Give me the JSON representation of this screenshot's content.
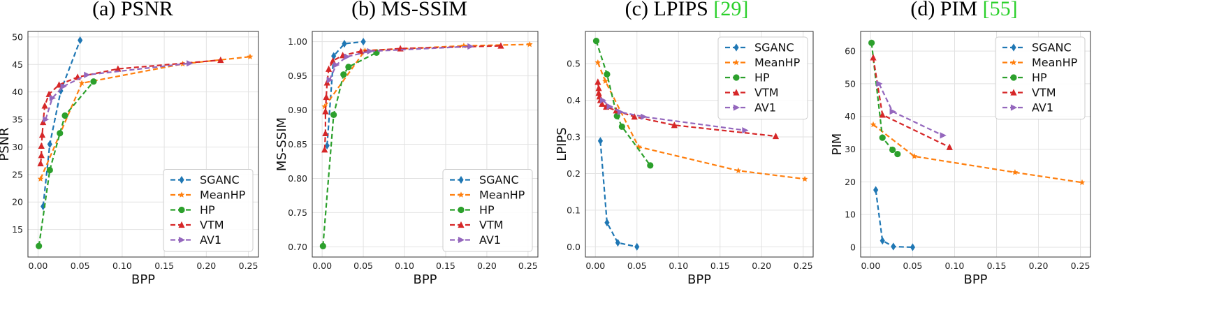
{
  "chart_data": [
    {
      "type": "line",
      "title": "(a) PSNR",
      "xlabel": "BPP",
      "ylabel": "PSNR",
      "xlim": [
        -0.012,
        0.262
      ],
      "ylim": [
        10,
        51
      ],
      "xticks": [
        "0.00",
        "0.05",
        "0.10",
        "0.15",
        "0.20",
        "0.25"
      ],
      "yticks": [
        "15",
        "20",
        "25",
        "30",
        "35",
        "40",
        "45",
        "50"
      ],
      "grid": true,
      "legend_position": "bottom-right",
      "series": [
        {
          "name": "SGANC",
          "color": "#1f77b4",
          "marker": "diamond",
          "x": [
            0.006,
            0.014,
            0.027,
            0.05
          ],
          "y": [
            19.2,
            30.5,
            40.2,
            49.4
          ]
        },
        {
          "name": "MeanHP",
          "color": "#ff7f0e",
          "marker": "star",
          "x": [
            0.003,
            0.052,
            0.172,
            0.252
          ],
          "y": [
            24.2,
            41.6,
            45.1,
            46.4
          ]
        },
        {
          "name": "HP",
          "color": "#2ca02c",
          "marker": "circle",
          "x": [
            0.001,
            0.014,
            0.026,
            0.032,
            0.066
          ],
          "y": [
            12.0,
            25.8,
            32.5,
            35.7,
            41.9
          ]
        },
        {
          "name": "VTM",
          "color": "#d62728",
          "marker": "triangle-up",
          "x": [
            0.003,
            0.004,
            0.004,
            0.005,
            0.006,
            0.008,
            0.013,
            0.025,
            0.047,
            0.095,
            0.217
          ],
          "y": [
            27.0,
            28.5,
            30.2,
            32.2,
            34.5,
            37.5,
            39.6,
            41.3,
            42.7,
            44.2,
            45.8
          ]
        },
        {
          "name": "AV1",
          "color": "#9467bd",
          "marker": "triangle-right",
          "x": [
            0.009,
            0.017,
            0.03,
            0.058,
            0.18
          ],
          "y": [
            35.0,
            38.9,
            41.0,
            43.1,
            45.2
          ]
        }
      ]
    },
    {
      "type": "line",
      "title": "(b) MS-SSIM",
      "xlabel": "BPP",
      "ylabel": "MS-SSIM",
      "xlim": [
        -0.012,
        0.262
      ],
      "ylim": [
        0.685,
        1.015
      ],
      "xticks": [
        "0.00",
        "0.05",
        "0.10",
        "0.15",
        "0.20",
        "0.25"
      ],
      "yticks": [
        "0.70",
        "0.75",
        "0.80",
        "0.85",
        "0.90",
        "0.95",
        "1.00"
      ],
      "grid": true,
      "legend_position": "bottom-right",
      "series": [
        {
          "name": "SGANC",
          "color": "#1f77b4",
          "marker": "diamond",
          "x": [
            0.006,
            0.014,
            0.027,
            0.05
          ],
          "y": [
            0.848,
            0.979,
            0.997,
            1.0
          ]
        },
        {
          "name": "MeanHP",
          "color": "#ff7f0e",
          "marker": "star",
          "x": [
            0.003,
            0.052,
            0.172,
            0.252
          ],
          "y": [
            0.905,
            0.987,
            0.994,
            0.996
          ]
        },
        {
          "name": "HP",
          "color": "#2ca02c",
          "marker": "circle",
          "x": [
            0.001,
            0.014,
            0.026,
            0.032,
            0.066
          ],
          "y": [
            0.701,
            0.893,
            0.952,
            0.963,
            0.984
          ]
        },
        {
          "name": "VTM",
          "color": "#d62728",
          "marker": "triangle-up",
          "x": [
            0.003,
            0.004,
            0.004,
            0.005,
            0.006,
            0.008,
            0.013,
            0.025,
            0.047,
            0.095,
            0.217
          ],
          "y": [
            0.842,
            0.866,
            0.898,
            0.919,
            0.94,
            0.96,
            0.972,
            0.98,
            0.986,
            0.99,
            0.994
          ]
        },
        {
          "name": "AV1",
          "color": "#9467bd",
          "marker": "triangle-right",
          "x": [
            0.009,
            0.017,
            0.03,
            0.058,
            0.18
          ],
          "y": [
            0.944,
            0.966,
            0.978,
            0.986,
            0.993
          ]
        }
      ]
    },
    {
      "type": "line",
      "title": "(c) LPIPS ",
      "title_ref": "[29]",
      "xlabel": "BPP",
      "ylabel": "LPIPS",
      "xlim": [
        -0.012,
        0.262
      ],
      "ylim": [
        -0.028,
        0.588
      ],
      "xticks": [
        "0.00",
        "0.05",
        "0.10",
        "0.15",
        "0.20",
        "0.25"
      ],
      "yticks": [
        "0.0",
        "0.1",
        "0.2",
        "0.3",
        "0.4",
        "0.5"
      ],
      "grid": true,
      "legend_position": "top-right",
      "series": [
        {
          "name": "SGANC",
          "color": "#1f77b4",
          "marker": "diamond",
          "x": [
            0.006,
            0.014,
            0.027,
            0.05
          ],
          "y": [
            0.289,
            0.066,
            0.011,
            0.0
          ]
        },
        {
          "name": "MeanHP",
          "color": "#ff7f0e",
          "marker": "star",
          "x": [
            0.003,
            0.012,
            0.052,
            0.172,
            0.252
          ],
          "y": [
            0.503,
            0.452,
            0.273,
            0.208,
            0.185
          ]
        },
        {
          "name": "HP",
          "color": "#2ca02c",
          "marker": "circle",
          "x": [
            0.001,
            0.014,
            0.026,
            0.032,
            0.066
          ],
          "y": [
            0.562,
            0.471,
            0.357,
            0.328,
            0.222
          ]
        },
        {
          "name": "VTM",
          "color": "#d62728",
          "marker": "triangle-up",
          "x": [
            0.003,
            0.004,
            0.004,
            0.005,
            0.006,
            0.008,
            0.013,
            0.025,
            0.047,
            0.095,
            0.217
          ],
          "y": [
            0.45,
            0.433,
            0.42,
            0.41,
            0.4,
            0.39,
            0.382,
            0.372,
            0.355,
            0.332,
            0.302
          ]
        },
        {
          "name": "AV1",
          "color": "#9467bd",
          "marker": "triangle-right",
          "x": [
            0.009,
            0.017,
            0.03,
            0.058,
            0.18
          ],
          "y": [
            0.4,
            0.383,
            0.368,
            0.355,
            0.318
          ]
        }
      ]
    },
    {
      "type": "line",
      "title": "(d) PIM ",
      "title_ref": "[55]",
      "xlabel": "BPP",
      "ylabel": "PIM",
      "xlim": [
        -0.012,
        0.262
      ],
      "ylim": [
        -3,
        66
      ],
      "xticks": [
        "0.00",
        "0.05",
        "0.10",
        "0.15",
        "0.20",
        "0.25"
      ],
      "yticks": [
        "0",
        "10",
        "20",
        "30",
        "40",
        "50",
        "60"
      ],
      "grid": true,
      "legend_position": "top-right",
      "series": [
        {
          "name": "SGANC",
          "color": "#1f77b4",
          "marker": "diamond",
          "x": [
            0.006,
            0.014,
            0.027,
            0.05
          ],
          "y": [
            17.5,
            2.0,
            0.2,
            0.0
          ]
        },
        {
          "name": "MeanHP",
          "color": "#ff7f0e",
          "marker": "star",
          "x": [
            0.003,
            0.052,
            0.172,
            0.252
          ],
          "y": [
            37.5,
            27.8,
            22.9,
            19.8
          ]
        },
        {
          "name": "HP",
          "color": "#2ca02c",
          "marker": "circle",
          "x": [
            0.001,
            0.014,
            0.026,
            0.032
          ],
          "y": [
            62.5,
            33.5,
            29.8,
            28.5
          ]
        },
        {
          "name": "VTM",
          "color": "#d62728",
          "marker": "triangle-up",
          "x": [
            0.003,
            0.014,
            0.094
          ],
          "y": [
            58.0,
            40.5,
            30.6
          ]
        },
        {
          "name": "AV1",
          "color": "#9467bd",
          "marker": "triangle-right",
          "x": [
            0.01,
            0.026,
            0.086
          ],
          "y": [
            50.0,
            41.5,
            34.2
          ]
        }
      ]
    }
  ]
}
